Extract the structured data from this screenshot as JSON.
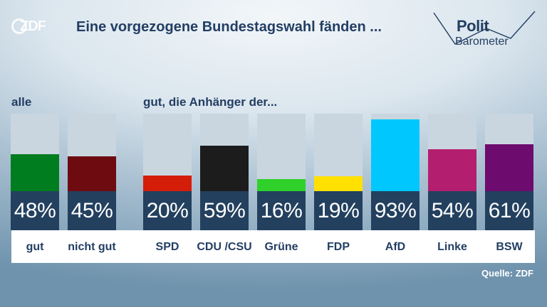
{
  "header": {
    "logo_text": "ZDF",
    "title": "Eine vorgezogene Bundestagswahl fänden ...",
    "brand_line1": "Polit",
    "brand_line2": "Barometer"
  },
  "footer": {
    "source": "Quelle: ZDF"
  },
  "chart_data": {
    "type": "bar",
    "title": "Eine vorgezogene Bundestagswahl fänden ...",
    "ylim": [
      0,
      100
    ],
    "groups": [
      {
        "label": "alle",
        "categories": [
          "gut",
          "nicht gut"
        ]
      },
      {
        "label": "gut, die Anhänger der...",
        "categories": [
          "SPD",
          "CDU /CSU",
          "Grüne",
          "FDP",
          "AfD",
          "Linke",
          "BSW"
        ]
      }
    ],
    "categories": [
      "gut",
      "nicht gut",
      "SPD",
      "CDU /CSU",
      "Grüne",
      "FDP",
      "AfD",
      "Linke",
      "BSW"
    ],
    "values": [
      48,
      45,
      20,
      59,
      16,
      19,
      93,
      54,
      61
    ],
    "value_labels": [
      "48%",
      "45%",
      "20%",
      "59%",
      "16%",
      "19%",
      "93%",
      "54%",
      "61%"
    ],
    "colors": [
      "#007d1f",
      "#6e0b10",
      "#d41e0a",
      "#1c1c1c",
      "#2fd12a",
      "#ffe000",
      "#00c8ff",
      "#b41e6e",
      "#6e0b6e"
    ]
  }
}
